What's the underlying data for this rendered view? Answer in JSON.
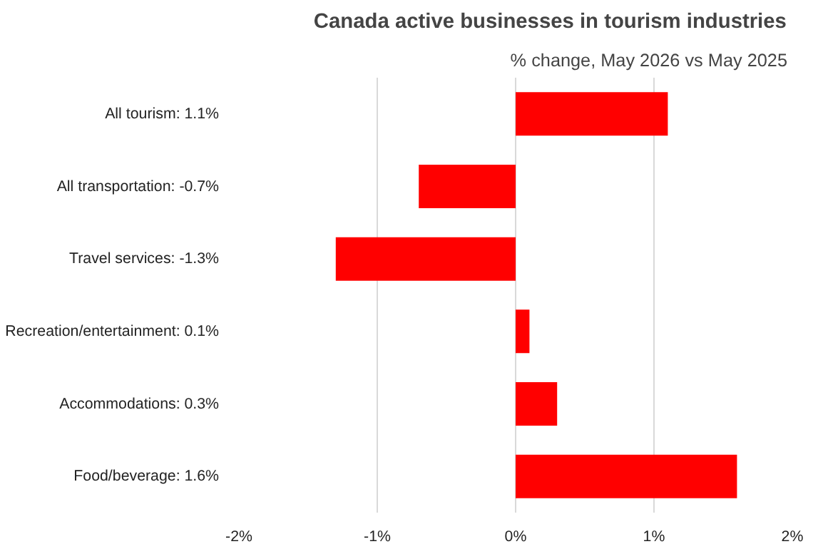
{
  "chart_data": {
    "type": "bar",
    "orientation": "horizontal",
    "title": "Canada active businesses  in tourism industries",
    "subtitle": "% change, May  2026 vs May 2025",
    "categories": [
      "All tourism:  1.1%",
      "All transportation:  -0.7%",
      "Travel services:  -1.3%",
      "Recreation/entertainment:  0.1%",
      "Accommodations:  0.3%",
      "Food/beverage:  1.6%"
    ],
    "values": [
      1.1,
      -0.7,
      -1.3,
      0.1,
      0.3,
      1.6
    ],
    "color": "#ff0000",
    "xlim": [
      -2,
      2
    ],
    "xticks": [
      {
        "value": -2,
        "label": "-2%"
      },
      {
        "value": -1,
        "label": "-1%"
      },
      {
        "value": 0,
        "label": "0%"
      },
      {
        "value": 1,
        "label": "1%"
      },
      {
        "value": 2,
        "label": "2%"
      }
    ],
    "grid": "x"
  }
}
